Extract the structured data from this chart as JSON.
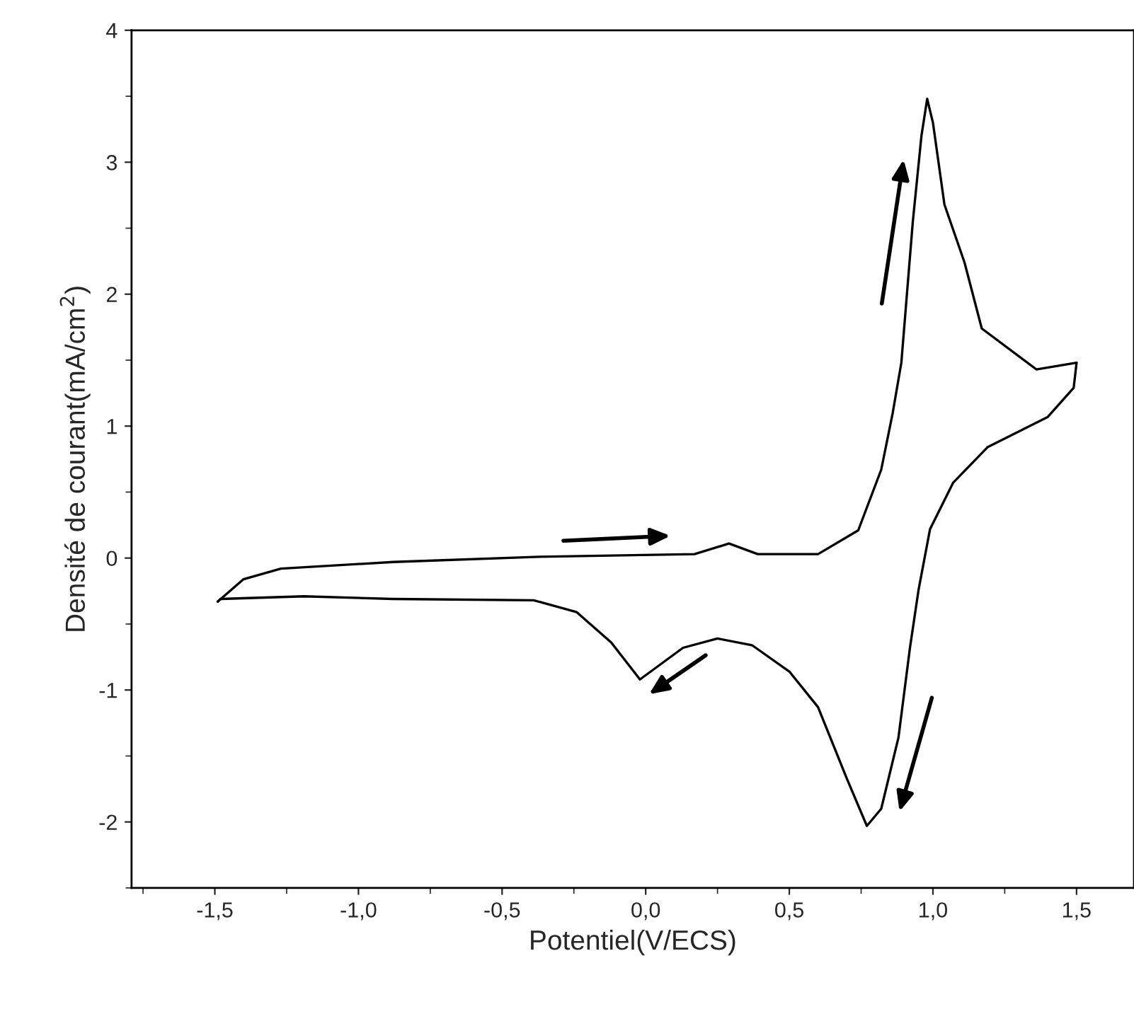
{
  "chart_data": {
    "type": "line",
    "xlabel": "Potentiel(V/ECS)",
    "ylabel": "Densité de courant(mA/cm$^{2}$)",
    "xlim": [
      -1.79,
      1.7
    ],
    "ylim": [
      -2.5,
      4
    ],
    "xticks": [
      {
        "value": -1.5,
        "label": "-1,5"
      },
      {
        "value": -1.0,
        "label": "-1,0"
      },
      {
        "value": -0.5,
        "label": "-0,5"
      },
      {
        "value": 0.0,
        "label": "0,0"
      },
      {
        "value": 0.5,
        "label": "0,5"
      },
      {
        "value": 1.0,
        "label": "1,0"
      },
      {
        "value": 1.5,
        "label": "1,5"
      }
    ],
    "yticks": [
      -2,
      -1,
      0,
      1,
      2,
      3,
      4
    ],
    "grid": false,
    "legend": false,
    "marker": "none",
    "line_style": "solid",
    "series": [
      {
        "color": "#000000",
        "x": [
          -1.49,
          -1.4,
          -1.27,
          -0.88,
          -0.37,
          0.17,
          0.29,
          0.39,
          0.6,
          0.74,
          0.82,
          0.86,
          0.89,
          0.93,
          0.96,
          0.98,
          1.0,
          1.04,
          1.11,
          1.17,
          1.36,
          1.5
        ],
        "values": [
          -0.33,
          -0.16,
          -0.08,
          -0.03,
          0.01,
          0.03,
          0.11,
          0.03,
          0.03,
          0.21,
          0.67,
          1.1,
          1.48,
          2.55,
          3.2,
          3.48,
          3.3,
          2.68,
          2.24,
          1.74,
          1.43,
          1.48
        ]
      },
      {
        "color": "#000000",
        "x": [
          1.5,
          1.49,
          1.4,
          1.19,
          1.07,
          0.99,
          0.95,
          0.92,
          0.88,
          0.82,
          0.77,
          0.7,
          0.6,
          0.5,
          0.37,
          0.25,
          0.13,
          -0.02,
          -0.12,
          -0.24,
          -0.39,
          -0.88,
          -1.19,
          -1.48,
          -1.49
        ],
        "values": [
          1.48,
          1.29,
          1.07,
          0.84,
          0.57,
          0.22,
          -0.24,
          -0.68,
          -1.36,
          -1.9,
          -2.03,
          -1.67,
          -1.13,
          -0.86,
          -0.66,
          -0.61,
          -0.68,
          -0.92,
          -0.64,
          -0.41,
          -0.32,
          -0.31,
          -0.29,
          -0.31,
          -0.33
        ]
      }
    ]
  }
}
